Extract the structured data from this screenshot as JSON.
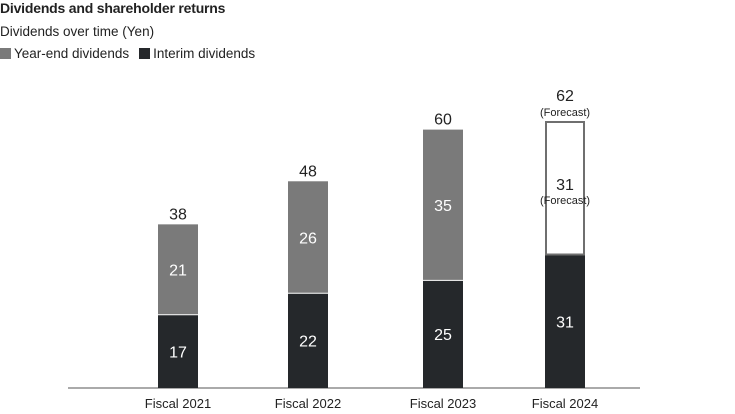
{
  "header": {
    "title": "Dividends and shareholder returns",
    "subtitle": "Dividends over time (Yen)"
  },
  "colors": {
    "year_end": "#7a7a7a",
    "interim": "#25282b",
    "forecast_fill": "#ffffff",
    "forecast_stroke": "#6f6f6f",
    "axis": "#555555"
  },
  "chart_data": {
    "type": "bar",
    "stacked": true,
    "title": "Dividends and shareholder returns",
    "subtitle": "Dividends over time (Yen)",
    "categories": [
      "Fiscal 2021",
      "Fiscal 2022",
      "Fiscal 2023",
      "Fiscal 2024"
    ],
    "series": [
      {
        "name": "Interim dividends",
        "values": [
          17,
          22,
          25,
          31
        ]
      },
      {
        "name": "Year-end dividends",
        "values": [
          21,
          26,
          35,
          31
        ]
      }
    ],
    "totals": [
      38,
      48,
      60,
      62
    ],
    "forecast": [
      false,
      false,
      false,
      true
    ],
    "forecast_label": "(Forecast)",
    "legend": [
      "Year-end dividends",
      "Interim dividends"
    ],
    "legend_position": "top-left",
    "ylim": [
      0,
      65
    ],
    "grid": false,
    "xlabel": "",
    "ylabel": ""
  }
}
